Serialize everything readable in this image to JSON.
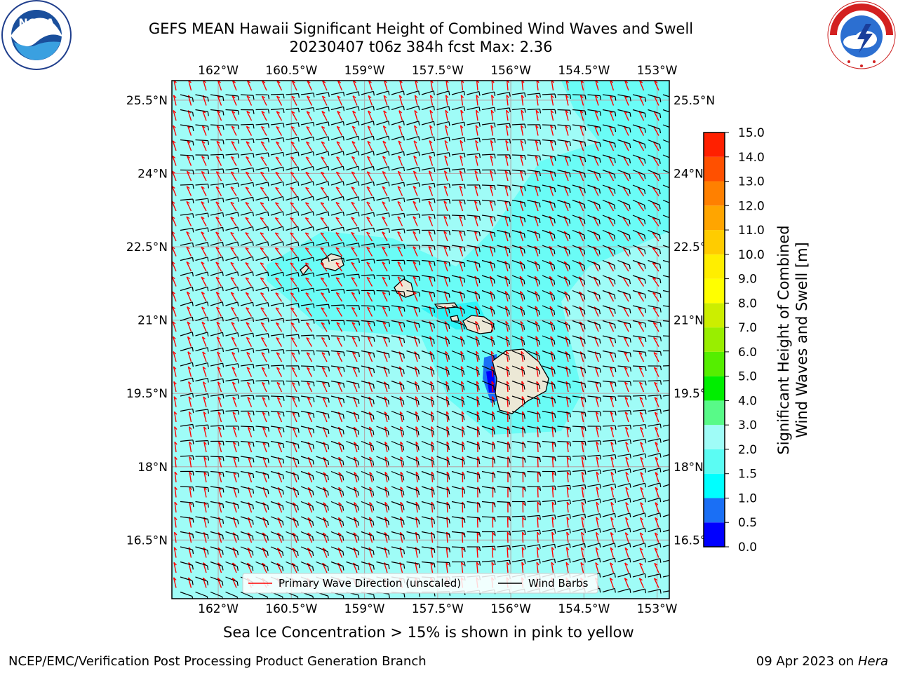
{
  "title_line1": "GEFS MEAN Hawaii Significant Height of Combined Wind Waves and Swell",
  "title_line2": "20230407 t06z 384h fcst   Max: 2.36",
  "logos": {
    "left": {
      "icon": "noaa-logo-icon",
      "text": "NOAA",
      "ring_text": "NATIONAL OCEANIC AND ATMOSPHERIC ADMINISTRATION · U.S. DEPARTMENT OF COMMERCE"
    },
    "right": {
      "icon": "nws-logo-icon",
      "ring_text": "NATIONAL WEATHER SERVICE"
    }
  },
  "map": {
    "lon_ticks": [
      "162°W",
      "160.5°W",
      "159°W",
      "157.5°W",
      "156°W",
      "154.5°W",
      "153°W"
    ],
    "lat_ticks": [
      "25.5°N",
      "24°N",
      "22.5°N",
      "21°N",
      "19.5°N",
      "18°N",
      "16.5°N"
    ],
    "lon_values": [
      -162,
      -160.5,
      -159,
      -157.5,
      -156,
      -154.5,
      -153
    ],
    "lat_values": [
      25.5,
      24,
      22.5,
      21,
      19.5,
      18,
      16.5
    ],
    "extent": {
      "lon_min": -162.95,
      "lon_max": -152.75,
      "lat_min": 15.3,
      "lat_max": 25.9
    },
    "ocean_color": "#9ffcf7",
    "land_color": "#ece8d6",
    "primary_wave_color": "#ff0000",
    "wind_barb_color": "#000000"
  },
  "legend": {
    "items": [
      {
        "label": "Primary Wave Direction (unscaled)",
        "color": "#ff0000"
      },
      {
        "label": "Wind Barbs",
        "color": "#000000"
      }
    ]
  },
  "colorbar": {
    "label_line1": "Significant Height of Combined",
    "label_line2": "Wind Waves and Swell [m]",
    "ticks": [
      "0.0",
      "0.5",
      "1.0",
      "1.5",
      "2.0",
      "3.0",
      "4.0",
      "5.0",
      "6.0",
      "7.0",
      "8.0",
      "9.0",
      "10.0",
      "11.0",
      "12.0",
      "13.0",
      "14.0",
      "15.0"
    ],
    "colors": [
      "#0000ff",
      "#1a6ff5",
      "#00ffff",
      "#5bfcf3",
      "#9ffcf7",
      "#58fa88",
      "#00ee00",
      "#55ee00",
      "#99ee00",
      "#ccee00",
      "#ffff00",
      "#ffee00",
      "#ffcc00",
      "#ffa500",
      "#ff8000",
      "#ff5000",
      "#ff2000",
      "#ff0000"
    ]
  },
  "sea_ice_note": "Sea Ice Concentration > 15% is shown in pink to yellow",
  "credit_left": "NCEP/EMC/Verification Post Processing Product Generation Branch",
  "credit_right_date": "09 Apr 2023 on ",
  "credit_right_host": "Hera"
}
